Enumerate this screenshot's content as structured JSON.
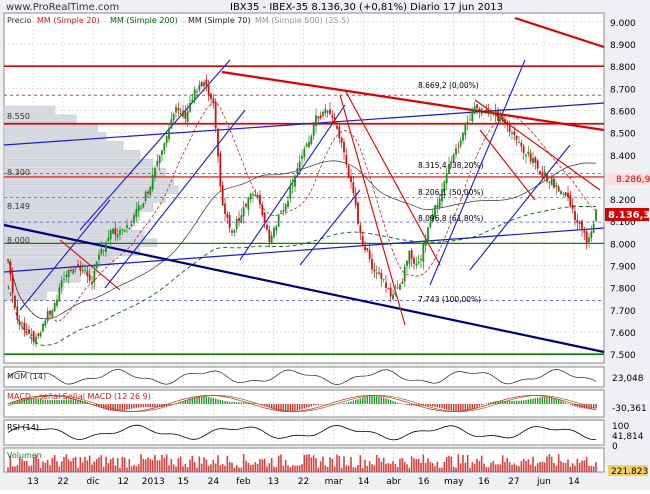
{
  "header": {
    "watermark": "www.ProRealTime.com",
    "title": "IBX35 - IBEX-35    8.136,30 (+0,81%)   Diario  17 jun 2013"
  },
  "legend": {
    "precio": "Precio",
    "mm20": "MM (Simple 20)",
    "mm200": "MM (Simple 200)",
    "mm70": "MM (Simple 70)",
    "mm500": "MM (Simple 500) (25.5)"
  },
  "colors": {
    "up": "#1e8c1e",
    "down": "#cc1111",
    "trend_red": "#dd0000",
    "trend_blue": "#1a1acc",
    "trend_navy": "#00007a",
    "green_line": "#008800",
    "price_box": "#d40000",
    "volume_bar": "#d84040"
  },
  "chart_data": {
    "type": "candlestick",
    "ylim": [
      7460,
      9040
    ],
    "y_ticks": [
      "9.000",
      "8.900",
      "8.800",
      "8.700",
      "8.600",
      "8.500",
      "8.400",
      "8.300",
      "8.200",
      "8.100",
      "8.000",
      "7.900",
      "7.800",
      "7.700",
      "7.600",
      "7.500"
    ],
    "x_ticks": [
      "13",
      "22",
      "dic",
      "12",
      "2013",
      "15",
      "24",
      "feb",
      "13",
      "22",
      "mar",
      "14",
      "abr",
      "16",
      "may",
      "16",
      "27",
      "jun",
      "14"
    ],
    "last_price": "8.136,30",
    "ma200_value": "8.286,9",
    "volume_profile_labels": [
      "8.550",
      "8.300",
      "8.149",
      "8.000"
    ],
    "fibonacci_labels": [
      "8.669,2 (0,00%)",
      "8.315,4 (38,20%)",
      "8.206,1 (50,00%)",
      "8.096,8 (61,80%)",
      "7.743 (100,00%)"
    ],
    "close_points": [
      [
        0,
        7930
      ],
      [
        4,
        7640
      ],
      [
        8,
        7620
      ],
      [
        12,
        7560
      ],
      [
        16,
        7660
      ],
      [
        20,
        7720
      ],
      [
        24,
        7850
      ],
      [
        28,
        7900
      ],
      [
        32,
        7880
      ],
      [
        36,
        7830
      ],
      [
        40,
        7970
      ],
      [
        44,
        8050
      ],
      [
        48,
        8040
      ],
      [
        52,
        8080
      ],
      [
        56,
        8160
      ],
      [
        60,
        8240
      ],
      [
        64,
        8380
      ],
      [
        68,
        8500
      ],
      [
        72,
        8600
      ],
      [
        76,
        8580
      ],
      [
        80,
        8680
      ],
      [
        84,
        8720
      ],
      [
        88,
        8620
      ],
      [
        90,
        8380
      ],
      [
        92,
        8170
      ],
      [
        96,
        8040
      ],
      [
        100,
        8140
      ],
      [
        104,
        8230
      ],
      [
        108,
        8180
      ],
      [
        112,
        8020
      ],
      [
        116,
        8120
      ],
      [
        120,
        8210
      ],
      [
        124,
        8350
      ],
      [
        128,
        8430
      ],
      [
        132,
        8560
      ],
      [
        136,
        8600
      ],
      [
        140,
        8550
      ],
      [
        144,
        8410
      ],
      [
        148,
        8210
      ],
      [
        152,
        8000
      ],
      [
        156,
        7900
      ],
      [
        160,
        7850
      ],
      [
        164,
        7780
      ],
      [
        168,
        7800
      ],
      [
        172,
        7950
      ],
      [
        176,
        7900
      ],
      [
        180,
        8080
      ],
      [
        184,
        8180
      ],
      [
        188,
        8320
      ],
      [
        192,
        8420
      ],
      [
        196,
        8530
      ],
      [
        200,
        8610
      ],
      [
        204,
        8620
      ],
      [
        208,
        8580
      ],
      [
        212,
        8560
      ],
      [
        216,
        8490
      ],
      [
        220,
        8440
      ],
      [
        224,
        8380
      ],
      [
        228,
        8330
      ],
      [
        232,
        8290
      ],
      [
        236,
        8250
      ],
      [
        240,
        8200
      ],
      [
        244,
        8100
      ],
      [
        248,
        8010
      ],
      [
        250,
        8060
      ],
      [
        252,
        8136
      ]
    ],
    "series": [
      {
        "name": "Precio",
        "type": "candlestick"
      },
      {
        "name": "MM (Simple 20)",
        "style": "dashed",
        "color": "#cc2222"
      },
      {
        "name": "MM (Simple 200)",
        "style": "dashed",
        "color": "#006600"
      },
      {
        "name": "MM (Simple 70)",
        "style": "solid",
        "color": "#222222"
      }
    ],
    "indicators": [
      {
        "name": "Momentum (14)",
        "label": "MOM (14)",
        "value": "23,048",
        "ticks": []
      },
      {
        "name": "MACD",
        "label": "MACD - señal Señal MACD (12 26 9)",
        "value": "-30,361",
        "ticks": []
      },
      {
        "name": "RSI",
        "label": "RSI (14)",
        "value": "41,814",
        "ticks": [
          "100",
          "0"
        ]
      },
      {
        "name": "Volumen",
        "label": "Volumen",
        "value": "221.823",
        "ticks": []
      }
    ]
  }
}
